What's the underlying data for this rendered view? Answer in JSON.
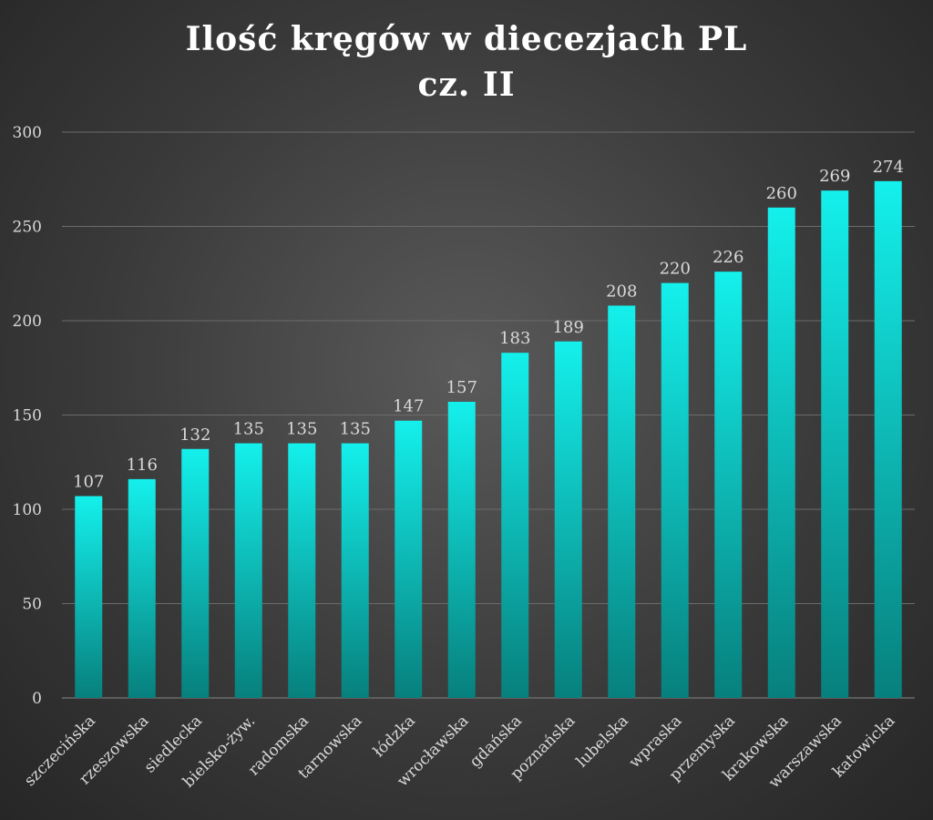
{
  "chart_data": {
    "type": "bar",
    "title": "Ilość kręgów w diecezjach PL",
    "subtitle": "cz. II",
    "xlabel": "",
    "ylabel": "",
    "ylim": [
      0,
      300
    ],
    "yticks": [
      0,
      50,
      100,
      150,
      200,
      250,
      300
    ],
    "grid": true,
    "legend": "none",
    "categories": [
      "szczecińska",
      "rzeszowska",
      "siedlecka",
      "bielsko-żyw.",
      "radomska",
      "tarnowska",
      "łódzka",
      "wrocławska",
      "gdańska",
      "poznańska",
      "lubelska",
      "wpraska",
      "przemyska",
      "krakowska",
      "warszawska",
      "katowicka"
    ],
    "values": [
      107,
      116,
      132,
      135,
      135,
      135,
      147,
      157,
      183,
      189,
      208,
      220,
      226,
      260,
      269,
      274
    ],
    "colors": {
      "bar_top": "#14f0ec",
      "bar_bottom": "#07807d",
      "text": "#d9d9d9",
      "grid": "#6b6b6b",
      "title": "#ffffff"
    }
  }
}
